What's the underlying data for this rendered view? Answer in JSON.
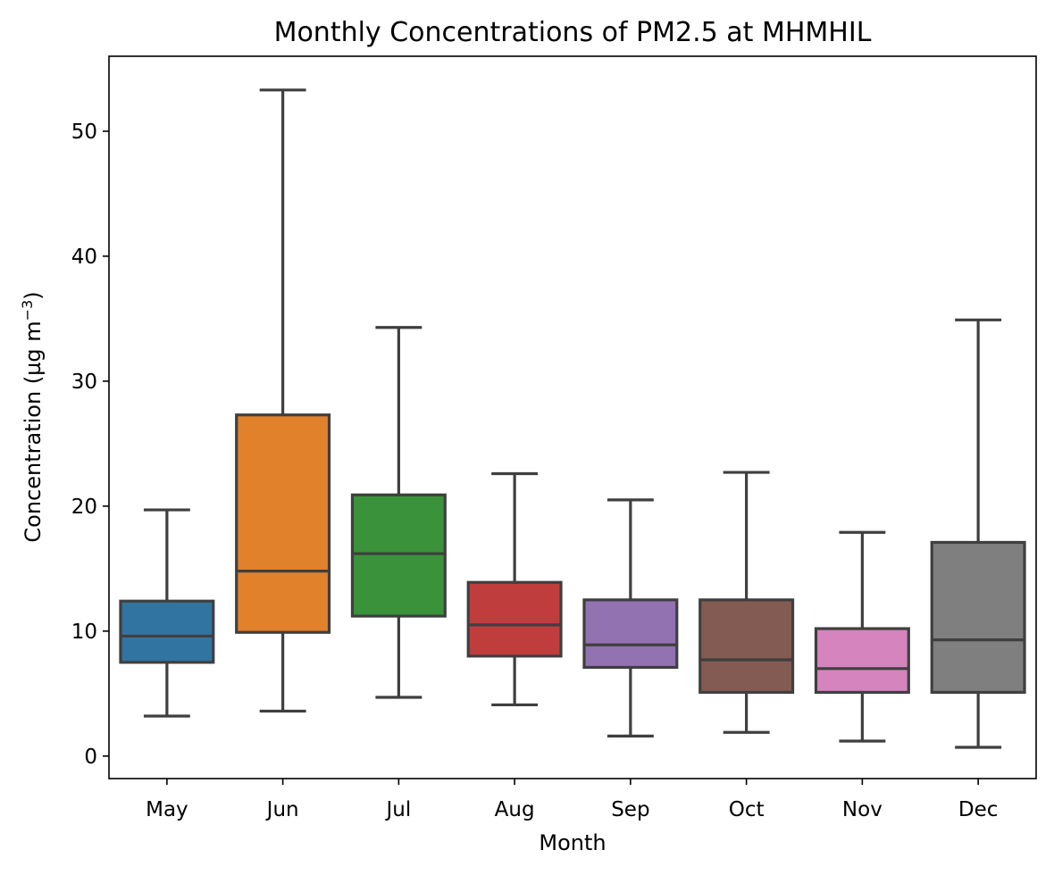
{
  "chart_data": {
    "type": "box",
    "title": "Monthly Concentrations of PM2.5 at MHMHIL",
    "xlabel": "Month",
    "ylabel_main": "Concentration (µg m",
    "ylabel_sup": "−3",
    "ylabel_tail": ")",
    "ylim": [
      -1.8,
      56
    ],
    "yticks": [
      0,
      10,
      20,
      30,
      40,
      50
    ],
    "grid": false,
    "legend": "none",
    "categories": [
      "May",
      "Jun",
      "Jul",
      "Aug",
      "Sep",
      "Oct",
      "Nov",
      "Dec"
    ],
    "colors": [
      "#3274a1",
      "#e1812c",
      "#3a923a",
      "#c03d3e",
      "#9372b2",
      "#845b53",
      "#d684bd",
      "#7f7f7f"
    ],
    "boxes": [
      {
        "min": 3.2,
        "q1": 7.5,
        "median": 9.6,
        "q3": 12.4,
        "max": 19.7
      },
      {
        "min": 3.6,
        "q1": 9.9,
        "median": 14.8,
        "q3": 27.3,
        "max": 53.3
      },
      {
        "min": 4.7,
        "q1": 11.2,
        "median": 16.2,
        "q3": 20.9,
        "max": 34.3
      },
      {
        "min": 4.1,
        "q1": 8.0,
        "median": 10.5,
        "q3": 13.9,
        "max": 22.6
      },
      {
        "min": 1.6,
        "q1": 7.1,
        "median": 8.9,
        "q3": 12.5,
        "max": 20.5
      },
      {
        "min": 1.9,
        "q1": 5.1,
        "median": 7.7,
        "q3": 12.5,
        "max": 22.7
      },
      {
        "min": 1.2,
        "q1": 5.1,
        "median": 7.0,
        "q3": 10.2,
        "max": 17.9
      },
      {
        "min": 0.7,
        "q1": 5.1,
        "median": 9.3,
        "q3": 17.1,
        "max": 34.9
      }
    ]
  }
}
